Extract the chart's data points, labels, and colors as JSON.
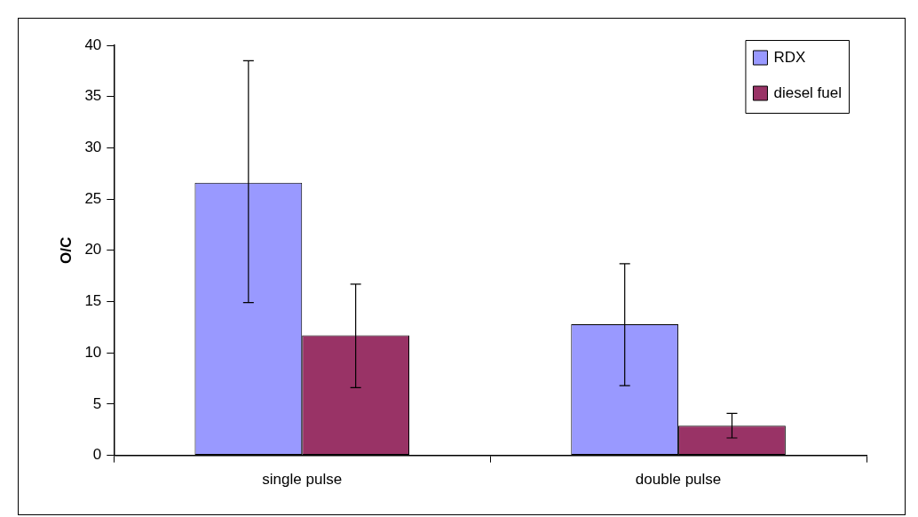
{
  "chart_data": {
    "type": "bar",
    "ylabel": "O/C",
    "categories": [
      "single pulse",
      "double pulse"
    ],
    "series": [
      {
        "name": "RDX",
        "color": "#9999ff",
        "values": [
          26.6,
          12.8
        ],
        "errors": [
          [
            14.9,
            38.5
          ],
          [
            6.8,
            18.7
          ]
        ]
      },
      {
        "name": "diesel fuel",
        "color": "#993366",
        "values": [
          11.7,
          2.9
        ],
        "errors": [
          [
            6.6,
            16.7
          ],
          [
            1.7,
            4.1
          ]
        ]
      }
    ],
    "ylim": [
      0,
      40
    ],
    "yticks": [
      0,
      5,
      10,
      15,
      20,
      25,
      30,
      35,
      40
    ],
    "grid": false,
    "legend": "top right"
  }
}
